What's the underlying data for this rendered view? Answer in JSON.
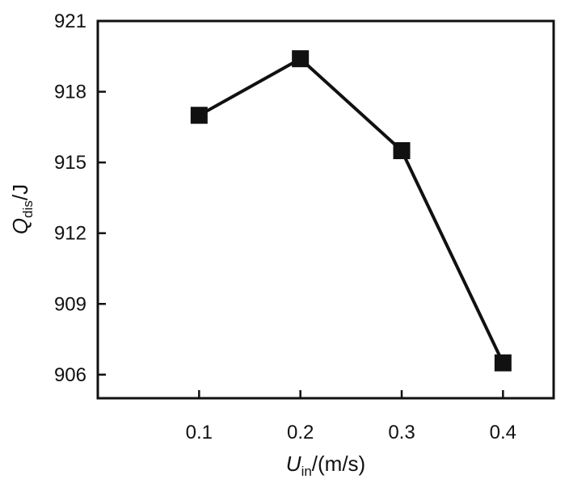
{
  "chart_data": {
    "type": "line",
    "title": "",
    "xlabel": {
      "var": "U",
      "sub": "in",
      "unit": "/(m/s)"
    },
    "ylabel": {
      "var": "Q",
      "sub": "dis",
      "unit": "/J"
    },
    "x": [
      0.1,
      0.2,
      0.3,
      0.4
    ],
    "x_tick_labels": [
      "0.1",
      "0.2",
      "0.3",
      "0.4"
    ],
    "y_ticks": [
      906,
      909,
      912,
      915,
      918,
      921
    ],
    "y_tick_labels": [
      "906",
      "909",
      "912",
      "915",
      "918",
      "921"
    ],
    "xlim": [
      0.0,
      0.45
    ],
    "ylim": [
      905,
      921
    ],
    "grid": false,
    "legend": "none",
    "series": [
      {
        "values": [
          917.0,
          919.4,
          915.5,
          906.5
        ],
        "marker": "square",
        "color": "#111111"
      }
    ]
  }
}
